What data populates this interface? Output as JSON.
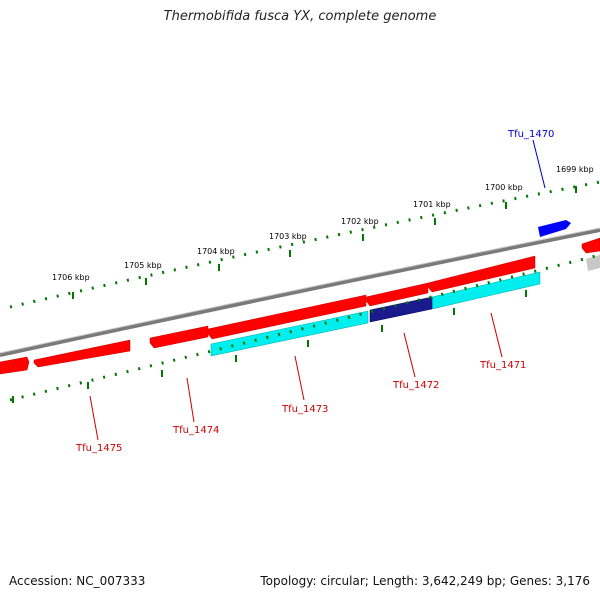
{
  "title": "Thermobifida fusca YX, complete genome",
  "footer": {
    "accession": "Accession: NC_007333",
    "summary": "Topology: circular; Length: 3,642,249 bp; Genes: 3,176"
  },
  "scale_labels": [
    "1699 kbp",
    "1700 kbp",
    "1701 kbp",
    "1702 kbp",
    "1703 kbp",
    "1704 kbp",
    "1705 kbp",
    "1706 kbp"
  ],
  "gene_labels": [
    {
      "name": "Tfu_1470",
      "color": "#0000cc"
    },
    {
      "name": "Tfu_1471",
      "color": "#cc0000"
    },
    {
      "name": "Tfu_1472",
      "color": "#cc0000"
    },
    {
      "name": "Tfu_1473",
      "color": "#cc0000"
    },
    {
      "name": "Tfu_1474",
      "color": "#cc0000"
    },
    {
      "name": "Tfu_1475",
      "color": "#cc0000"
    }
  ],
  "colors": {
    "cds": "#ff0000",
    "rna": "#0000ff",
    "feature_cyan": "#00e5ee",
    "feature_navy": "#000080",
    "backbone": "#808080",
    "ticks": "#007700",
    "label_red": "#cc0000",
    "label_blue": "#0000cc"
  }
}
